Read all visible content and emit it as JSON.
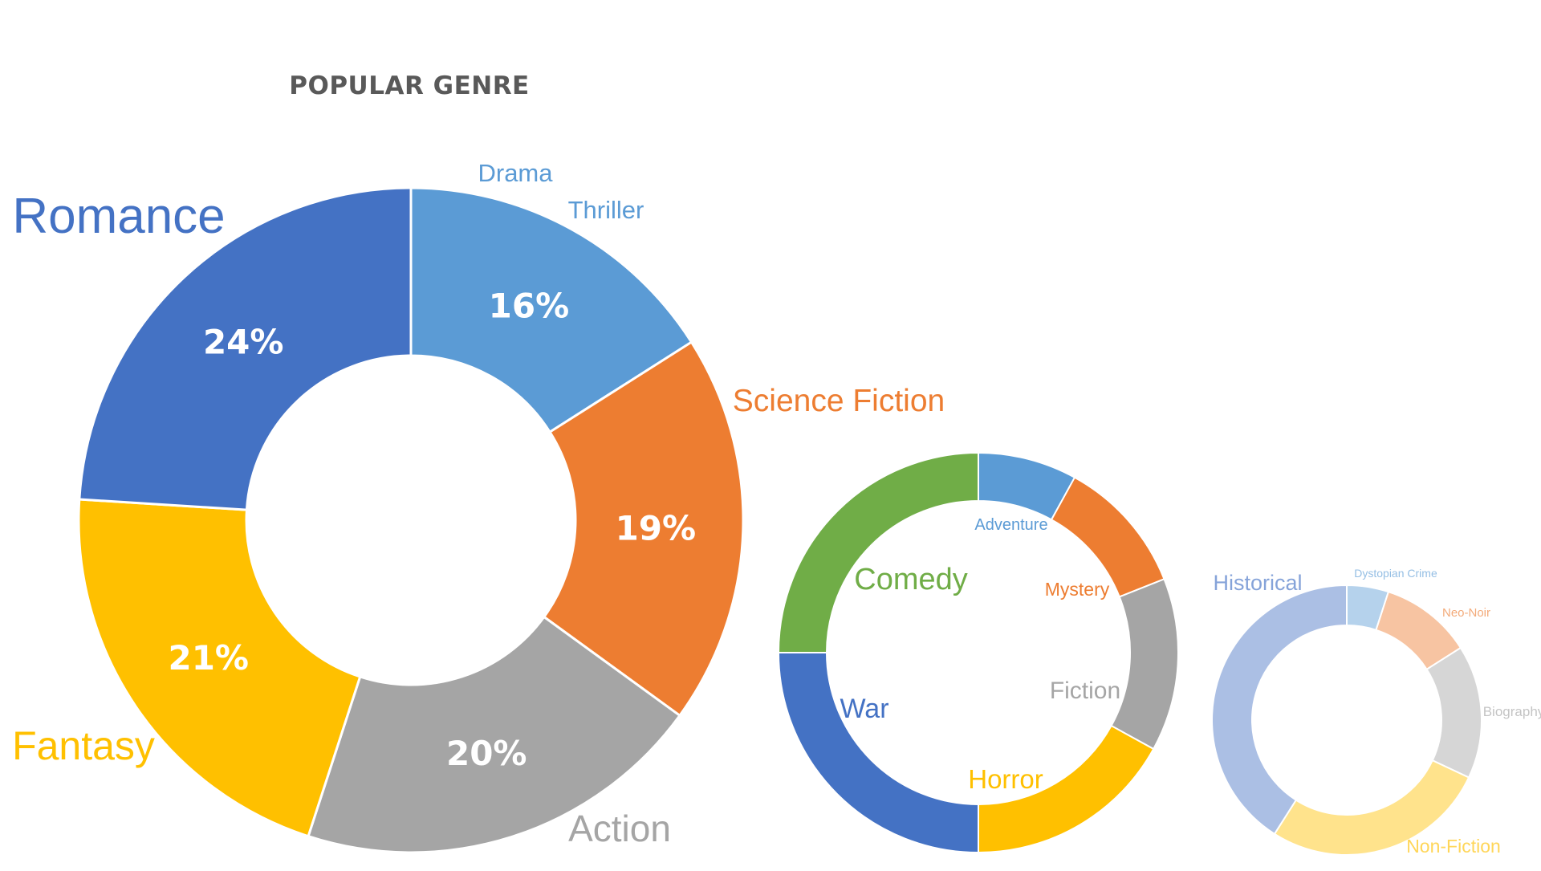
{
  "chart_data": [
    {
      "type": "donut",
      "title": "POPULAR GENRE",
      "slices": [
        {
          "label": "Thriller",
          "value": 16,
          "value_label": "16%",
          "color": "#5B9BD5"
        },
        {
          "label": "Science Fiction",
          "value": 19,
          "value_label": "19%",
          "color": "#ED7D31"
        },
        {
          "label": "Action",
          "value": 20,
          "value_label": "20%",
          "color": "#A5A5A5"
        },
        {
          "label": "Fantasy",
          "value": 21,
          "value_label": "21%",
          "color": "#FFC000"
        },
        {
          "label": "Romance",
          "value": 24,
          "value_label": "24%",
          "color": "#4472C4"
        }
      ],
      "extra_labels": [
        {
          "text": "Drama",
          "color": "#5B9BD5"
        }
      ]
    },
    {
      "type": "donut",
      "slices": [
        {
          "label": "Adventure",
          "value": 8,
          "color": "#5B9BD5"
        },
        {
          "label": "Mystery",
          "value": 11,
          "color": "#ED7D31"
        },
        {
          "label": "Fiction",
          "value": 14,
          "color": "#A5A5A5"
        },
        {
          "label": "Horror",
          "value": 17,
          "color": "#FFC000"
        },
        {
          "label": "War",
          "value": 25,
          "color": "#4472C4"
        },
        {
          "label": "Comedy",
          "value": 25,
          "color": "#70AD47"
        }
      ]
    },
    {
      "type": "donut",
      "slices": [
        {
          "label": "Dystopian Crime",
          "value": 5,
          "color": "#5B9BD5"
        },
        {
          "label": "Neo-Noir",
          "value": 11,
          "color": "#ED7D31"
        },
        {
          "label": "Biography",
          "value": 16,
          "color": "#A5A5A5"
        },
        {
          "label": "Non-Fiction",
          "value": 27,
          "color": "#FFC000"
        },
        {
          "label": "Historical",
          "value": 41,
          "color": "#4472C4"
        }
      ]
    }
  ]
}
